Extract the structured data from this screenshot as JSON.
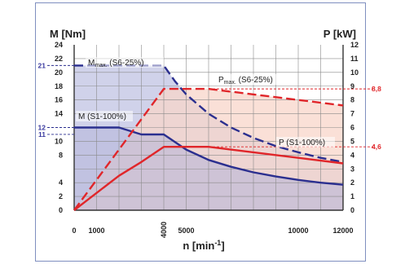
{
  "chart_data": {
    "type": "line",
    "left_axis_title": "M [Nm]",
    "right_axis_title": "P [kW]",
    "x_axis_title": "n [min",
    "x_axis_title_sup": "-1",
    "x_axis_title_end": "]",
    "xlim": [
      0,
      12000
    ],
    "ylim_left": [
      0,
      24
    ],
    "ylim_right": [
      0,
      12
    ],
    "x_ticks": [
      {
        "value": 0,
        "label": "0"
      },
      {
        "value": 1000,
        "label": "1000"
      },
      {
        "value": 5000,
        "label": "5000"
      },
      {
        "value": 10000,
        "label": "10000"
      },
      {
        "value": 12000,
        "label": "12000"
      }
    ],
    "x_tick_vertical": {
      "value": 4000,
      "label": "4000"
    },
    "left_ticks": [
      {
        "value": 0,
        "label": "0"
      },
      {
        "value": 2,
        "label": "2"
      },
      {
        "value": 4,
        "label": "4"
      },
      {
        "value": 8,
        "label": "8"
      },
      {
        "value": 10,
        "label": "10"
      },
      {
        "value": 14,
        "label": "14"
      },
      {
        "value": 16,
        "label": "16"
      },
      {
        "value": 18,
        "label": "18"
      },
      {
        "value": 20,
        "label": "20"
      },
      {
        "value": 22,
        "label": "22"
      },
      {
        "value": 24,
        "label": "24"
      }
    ],
    "right_ticks": [
      {
        "value": 0,
        "label": "0"
      },
      {
        "value": 1,
        "label": "1"
      },
      {
        "value": 2,
        "label": "2"
      },
      {
        "value": 3,
        "label": "3"
      },
      {
        "value": 4,
        "label": "4"
      },
      {
        "value": 5,
        "label": "5"
      },
      {
        "value": 6,
        "label": "6"
      },
      {
        "value": 7,
        "label": "7"
      },
      {
        "value": 8,
        "label": "8"
      },
      {
        "value": 9,
        "label": "9"
      },
      {
        "value": 10,
        "label": "10"
      },
      {
        "value": 11,
        "label": "11"
      },
      {
        "value": 12,
        "label": "12"
      }
    ],
    "left_markers": [
      {
        "value": 21,
        "label": "21"
      },
      {
        "value": 12,
        "label": "12"
      },
      {
        "value": 11,
        "label": "11"
      }
    ],
    "right_markers": [
      {
        "value": 8.8,
        "label": "8,8"
      },
      {
        "value": 4.6,
        "label": "4,6"
      }
    ],
    "grid": true,
    "series": [
      {
        "name": "M",
        "name_sub": "max.",
        "name_suffix": " (S6-25%)",
        "axis": "left",
        "color": "#2b2f8f",
        "dashed": true,
        "x": [
          0,
          4000,
          4500,
          5000,
          6000,
          7000,
          8000,
          9000,
          10000,
          11000,
          12000
        ],
        "y": [
          21,
          21,
          18.7,
          16.8,
          14.0,
          12.0,
          10.5,
          9.3,
          8.4,
          7.6,
          7.0
        ]
      },
      {
        "name": "M (S1-100%)",
        "axis": "left",
        "color": "#2b2f8f",
        "dashed": false,
        "x": [
          0,
          2000,
          3000,
          4000,
          5000,
          6000,
          7000,
          8000,
          9000,
          10000,
          11000,
          12000
        ],
        "y": [
          12,
          12,
          11,
          11,
          8.8,
          7.3,
          6.3,
          5.5,
          4.9,
          4.4,
          4.0,
          3.7
        ]
      },
      {
        "name": "P",
        "name_sub": "max.",
        "name_suffix": " (S6-25%)",
        "axis": "right",
        "color": "#e0262a",
        "dashed": true,
        "x": [
          0,
          4000,
          6000,
          12000
        ],
        "y": [
          0,
          8.8,
          8.8,
          7.6
        ]
      },
      {
        "name": "P (S1-100%)",
        "axis": "right",
        "color": "#e0262a",
        "dashed": false,
        "x": [
          0,
          2000,
          3000,
          4000,
          6000,
          12000
        ],
        "y": [
          0,
          2.5,
          3.5,
          4.6,
          4.6,
          3.4
        ]
      }
    ],
    "curve_labels": [
      {
        "series": 0,
        "text": "M",
        "sub": "max.",
        "suffix": " (S6-25%)"
      },
      {
        "series": 1,
        "text": "M (S1-100%)"
      },
      {
        "series": 2,
        "text": "P",
        "sub": "max.",
        "suffix": " (S6-25%)"
      },
      {
        "series": 3,
        "text": "P (S1-100%)"
      }
    ],
    "colors": {
      "blue": "#2b2f8f",
      "red": "#e0262a",
      "blue_fill": "#c8cae6",
      "red_fill": "#f8d6c9",
      "grid": "#8a8a8a",
      "axis": "#333333"
    }
  }
}
